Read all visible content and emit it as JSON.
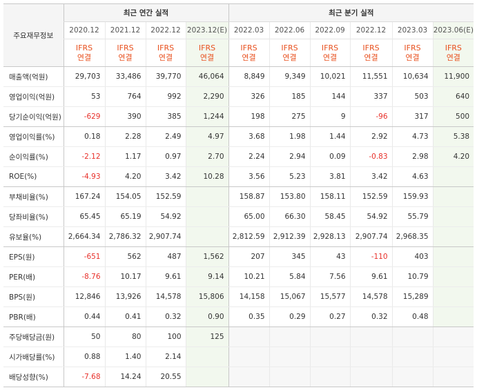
{
  "header": {
    "corner_label": "주요재무정보",
    "annual_title": "최근 연간 실적",
    "quarterly_title": "최근 분기 실적"
  },
  "periods": [
    "2020.12",
    "2021.12",
    "2022.12",
    "2023.12(E)",
    "2022.03",
    "2022.06",
    "2022.09",
    "2022.12",
    "2023.03",
    "2023.06(E)"
  ],
  "ifrs": {
    "line1": "IFRS",
    "line2": "연결"
  },
  "colors": {
    "accent_orange": "#e8501e",
    "negative_red": "#e8302a",
    "estimate_bg": "#f2f8ee"
  },
  "rows": [
    {
      "label": "매출액(억원)",
      "values": [
        "29,703",
        "33,486",
        "39,770",
        "46,064",
        "8,849",
        "9,349",
        "10,021",
        "11,551",
        "10,634",
        "11,900"
      ]
    },
    {
      "label": "영업이익(억원)",
      "values": [
        "53",
        "764",
        "992",
        "2,290",
        "326",
        "185",
        "144",
        "337",
        "503",
        "640"
      ]
    },
    {
      "label": "당기순이익(억원)",
      "values": [
        "-629",
        "390",
        "385",
        "1,244",
        "198",
        "275",
        "9",
        "-96",
        "317",
        "500"
      ]
    },
    {
      "label": "영업이익률(%)",
      "values": [
        "0.18",
        "2.28",
        "2.49",
        "4.97",
        "3.68",
        "1.98",
        "1.44",
        "2.92",
        "4.73",
        "5.38"
      ]
    },
    {
      "label": "순이익률(%)",
      "values": [
        "-2.12",
        "1.17",
        "0.97",
        "2.70",
        "2.24",
        "2.94",
        "0.09",
        "-0.83",
        "2.98",
        "4.20"
      ]
    },
    {
      "label": "ROE(%)",
      "values": [
        "-4.93",
        "4.20",
        "3.42",
        "10.28",
        "3.56",
        "5.23",
        "3.81",
        "3.42",
        "4.63",
        ""
      ]
    },
    {
      "label": "부채비율(%)",
      "values": [
        "167.24",
        "154.05",
        "152.59",
        "",
        "158.87",
        "153.80",
        "158.11",
        "152.59",
        "159.93",
        ""
      ]
    },
    {
      "label": "당좌비율(%)",
      "values": [
        "65.45",
        "65.19",
        "54.92",
        "",
        "65.00",
        "66.30",
        "58.45",
        "54.92",
        "55.79",
        ""
      ]
    },
    {
      "label": "유보율(%)",
      "values": [
        "2,664.34",
        "2,786.32",
        "2,907.74",
        "",
        "2,812.59",
        "2,912.39",
        "2,928.13",
        "2,907.74",
        "2,968.35",
        ""
      ]
    },
    {
      "label": "EPS(원)",
      "values": [
        "-651",
        "562",
        "487",
        "1,562",
        "207",
        "345",
        "43",
        "-110",
        "403",
        ""
      ]
    },
    {
      "label": "PER(배)",
      "values": [
        "-8.76",
        "10.17",
        "9.61",
        "9.14",
        "10.21",
        "5.84",
        "7.56",
        "9.61",
        "10.79",
        ""
      ]
    },
    {
      "label": "BPS(원)",
      "values": [
        "12,846",
        "13,926",
        "14,578",
        "15,806",
        "14,158",
        "15,067",
        "15,577",
        "14,578",
        "15,289",
        ""
      ]
    },
    {
      "label": "PBR(배)",
      "values": [
        "0.44",
        "0.41",
        "0.32",
        "0.90",
        "0.35",
        "0.29",
        "0.27",
        "0.32",
        "0.48",
        ""
      ]
    },
    {
      "label": "주당배당금(원)",
      "values": [
        "50",
        "80",
        "100",
        "125",
        "",
        "",
        "",
        "",
        "",
        ""
      ]
    },
    {
      "label": "시가배당률(%)",
      "values": [
        "0.88",
        "1.40",
        "2.14",
        "",
        "",
        "",
        "",
        "",
        "",
        ""
      ]
    },
    {
      "label": "배당성향(%)",
      "values": [
        "-7.68",
        "14.24",
        "20.55",
        "",
        "",
        "",
        "",
        "",
        "",
        ""
      ]
    }
  ]
}
